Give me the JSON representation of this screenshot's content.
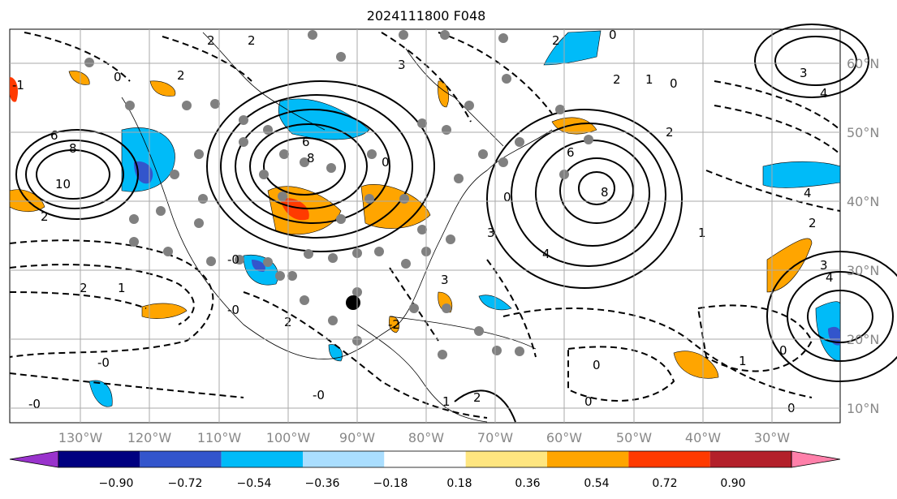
{
  "title": "2024111800 F048",
  "map": {
    "latitude_labels": [
      "60°N",
      "50°N",
      "40°N",
      "30°N",
      "20°N",
      "10°N"
    ],
    "longitude_labels": [
      "130°W",
      "120°W",
      "110°W",
      "100°W",
      "90°W",
      "80°W",
      "70°W",
      "60°W",
      "50°W",
      "40°W",
      "30°W"
    ],
    "contour_labels": [
      "2",
      "2",
      "0",
      "6",
      "8",
      "10",
      "2",
      "1",
      "2",
      "6",
      "8",
      "3",
      "2",
      "1",
      "0",
      "2",
      "3",
      "4",
      "6",
      "8",
      "3",
      "2",
      "4",
      "0",
      "1",
      "3",
      "4",
      "1",
      "0",
      "0",
      "1",
      "2",
      "0",
      "0",
      "3",
      "4",
      "2",
      "-2",
      "-1",
      "-0",
      "-0",
      "-0",
      "-0",
      "-0",
      "0",
      "2",
      "0",
      "2"
    ]
  },
  "colorbar": {
    "tick_labels": [
      "−0.90",
      "−0.72",
      "−0.54",
      "−0.36",
      "−0.18",
      "0.18",
      "0.36",
      "0.54",
      "0.72",
      "0.90"
    ],
    "colors": [
      "#9933cc",
      "#000080",
      "#3355cc",
      "#00bbf8",
      "#aadeff",
      "#ffffff",
      "#ffe680",
      "#ffa500",
      "#ff3a00",
      "#b3202a",
      "#ff80aa"
    ]
  }
}
